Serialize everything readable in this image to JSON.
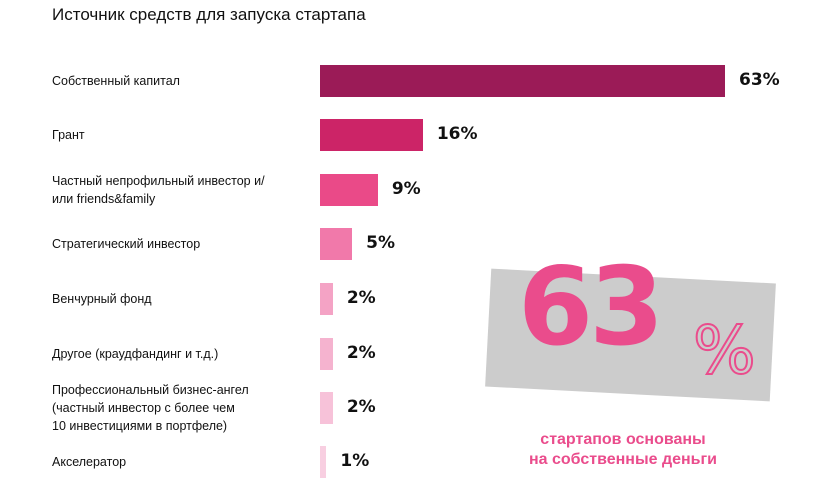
{
  "title": "Источник средств для запуска стартапа",
  "chart_data": {
    "type": "bar",
    "orientation": "horizontal",
    "categories": [
      "Собственный капитал",
      "Грант",
      "Частный непрофильный инвестор и/\nили friends&family",
      "Стратегический инвестор",
      "Венчурный фонд",
      "Другое (краудфандинг и т.д.)",
      "Профессиональный бизнес-ангел\n(частный инвестор с более чем\n10 инвестициями в портфеле)",
      "Акселератор"
    ],
    "values": [
      63,
      16,
      9,
      5,
      2,
      2,
      2,
      1
    ],
    "value_labels": [
      "63%",
      "16%",
      "9%",
      "5%",
      "2%",
      "2%",
      "2%",
      "1%"
    ],
    "colors": [
      "#9b1b57",
      "#cc2467",
      "#ea4a88",
      "#f179aa",
      "#f4a3c5",
      "#f5b3cf",
      "#f7c2d9",
      "#f8cfe1"
    ],
    "grid": false
  },
  "callout": {
    "number": "63",
    "percent": "%",
    "text_line1": "стартапов основаны",
    "text_line2": "на собственные деньги"
  }
}
